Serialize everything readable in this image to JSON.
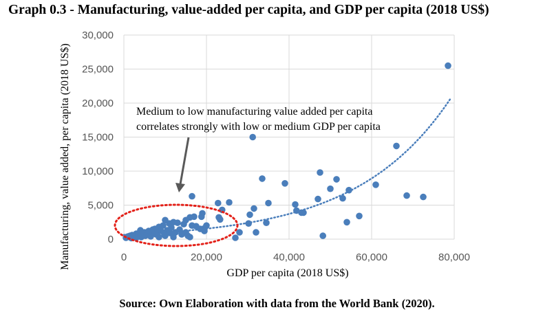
{
  "title": "Graph 0.3  - Manufacturing, value-added per capita, and GDP per capita (2018 US$)",
  "source": "Source: Own Elaboration with data from the World Bank (2020).",
  "colors": {
    "points": "#4a7ebb",
    "trend": "#4a7ebb",
    "ellipse": "#e32119",
    "arrow": "#595959",
    "grid": "#d9d9d9"
  },
  "chart_data": {
    "type": "scatter",
    "xlabel": "GDP per capita (2018 US$)",
    "ylabel": "Manufacturing, value added, per capita (2018 US$)",
    "xlim": [
      0,
      80000
    ],
    "ylim": [
      0,
      30000
    ],
    "x_ticks": [
      "0",
      "20,000",
      "40,000",
      "60,000",
      "80,000"
    ],
    "y_ticks": [
      "0",
      "5,000",
      "10,000",
      "15,000",
      "20,000",
      "25,000",
      "30,000"
    ],
    "grid": true,
    "trendline": {
      "type": "exponential",
      "style": "dotted"
    },
    "annotation": {
      "lines": [
        "Medium to low manufacturing value added per capita",
        "correlates strongly with low or medium GDP per capita"
      ]
    },
    "points": [
      [
        78500,
        25500
      ],
      [
        31200,
        15000
      ],
      [
        66000,
        13700
      ],
      [
        47500,
        9800
      ],
      [
        51500,
        8800
      ],
      [
        33500,
        8900
      ],
      [
        39000,
        8200
      ],
      [
        61000,
        8000
      ],
      [
        50000,
        7400
      ],
      [
        54500,
        7200
      ],
      [
        68500,
        6400
      ],
      [
        72500,
        6200
      ],
      [
        16500,
        6300
      ],
      [
        47000,
        5900
      ],
      [
        53000,
        6000
      ],
      [
        25500,
        5400
      ],
      [
        41500,
        5100
      ],
      [
        35000,
        5300
      ],
      [
        22800,
        5300
      ],
      [
        31500,
        4500
      ],
      [
        41800,
        4200
      ],
      [
        23800,
        4300
      ],
      [
        43000,
        3900
      ],
      [
        43500,
        3900
      ],
      [
        57000,
        3400
      ],
      [
        19000,
        3800
      ],
      [
        54000,
        2500
      ],
      [
        34500,
        2400
      ],
      [
        23000,
        3200
      ],
      [
        23300,
        2900
      ],
      [
        30500,
        3600
      ],
      [
        16000,
        3200
      ],
      [
        17000,
        3300
      ],
      [
        18800,
        3300
      ],
      [
        15000,
        2800
      ],
      [
        14500,
        2200
      ],
      [
        16500,
        2000
      ],
      [
        17500,
        1900
      ],
      [
        20000,
        2000
      ],
      [
        19500,
        1600
      ],
      [
        18500,
        1500
      ],
      [
        10000,
        2800
      ],
      [
        12000,
        2500
      ],
      [
        13000,
        2400
      ],
      [
        11000,
        2300
      ],
      [
        9500,
        2000
      ],
      [
        8500,
        1800
      ],
      [
        7500,
        1500
      ],
      [
        6000,
        1200
      ],
      [
        4000,
        1300
      ],
      [
        5000,
        1000
      ],
      [
        3000,
        800
      ],
      [
        2000,
        600
      ],
      [
        1500,
        500
      ],
      [
        1000,
        400
      ],
      [
        500,
        200
      ],
      [
        800,
        300
      ],
      [
        2500,
        400
      ],
      [
        3500,
        700
      ],
      [
        4500,
        900
      ],
      [
        5500,
        600
      ],
      [
        6500,
        1100
      ],
      [
        7000,
        1400
      ],
      [
        8000,
        900
      ],
      [
        9000,
        1200
      ],
      [
        10500,
        1300
      ],
      [
        11500,
        1700
      ],
      [
        12500,
        1000
      ],
      [
        13500,
        1400
      ],
      [
        14000,
        700
      ],
      [
        15000,
        1000
      ],
      [
        15500,
        500
      ],
      [
        16000,
        300
      ],
      [
        6500,
        400
      ],
      [
        8500,
        300
      ],
      [
        10000,
        500
      ],
      [
        12000,
        300
      ],
      [
        3000,
        200
      ],
      [
        1800,
        150
      ],
      [
        27000,
        200
      ],
      [
        28000,
        1000
      ],
      [
        30200,
        2300
      ],
      [
        32000,
        1000
      ],
      [
        48200,
        500
      ],
      [
        9800,
        800
      ],
      [
        11200,
        900
      ],
      [
        7800,
        700
      ],
      [
        5200,
        500
      ],
      [
        4200,
        300
      ],
      [
        2200,
        250
      ],
      [
        19500,
        1200
      ]
    ]
  }
}
